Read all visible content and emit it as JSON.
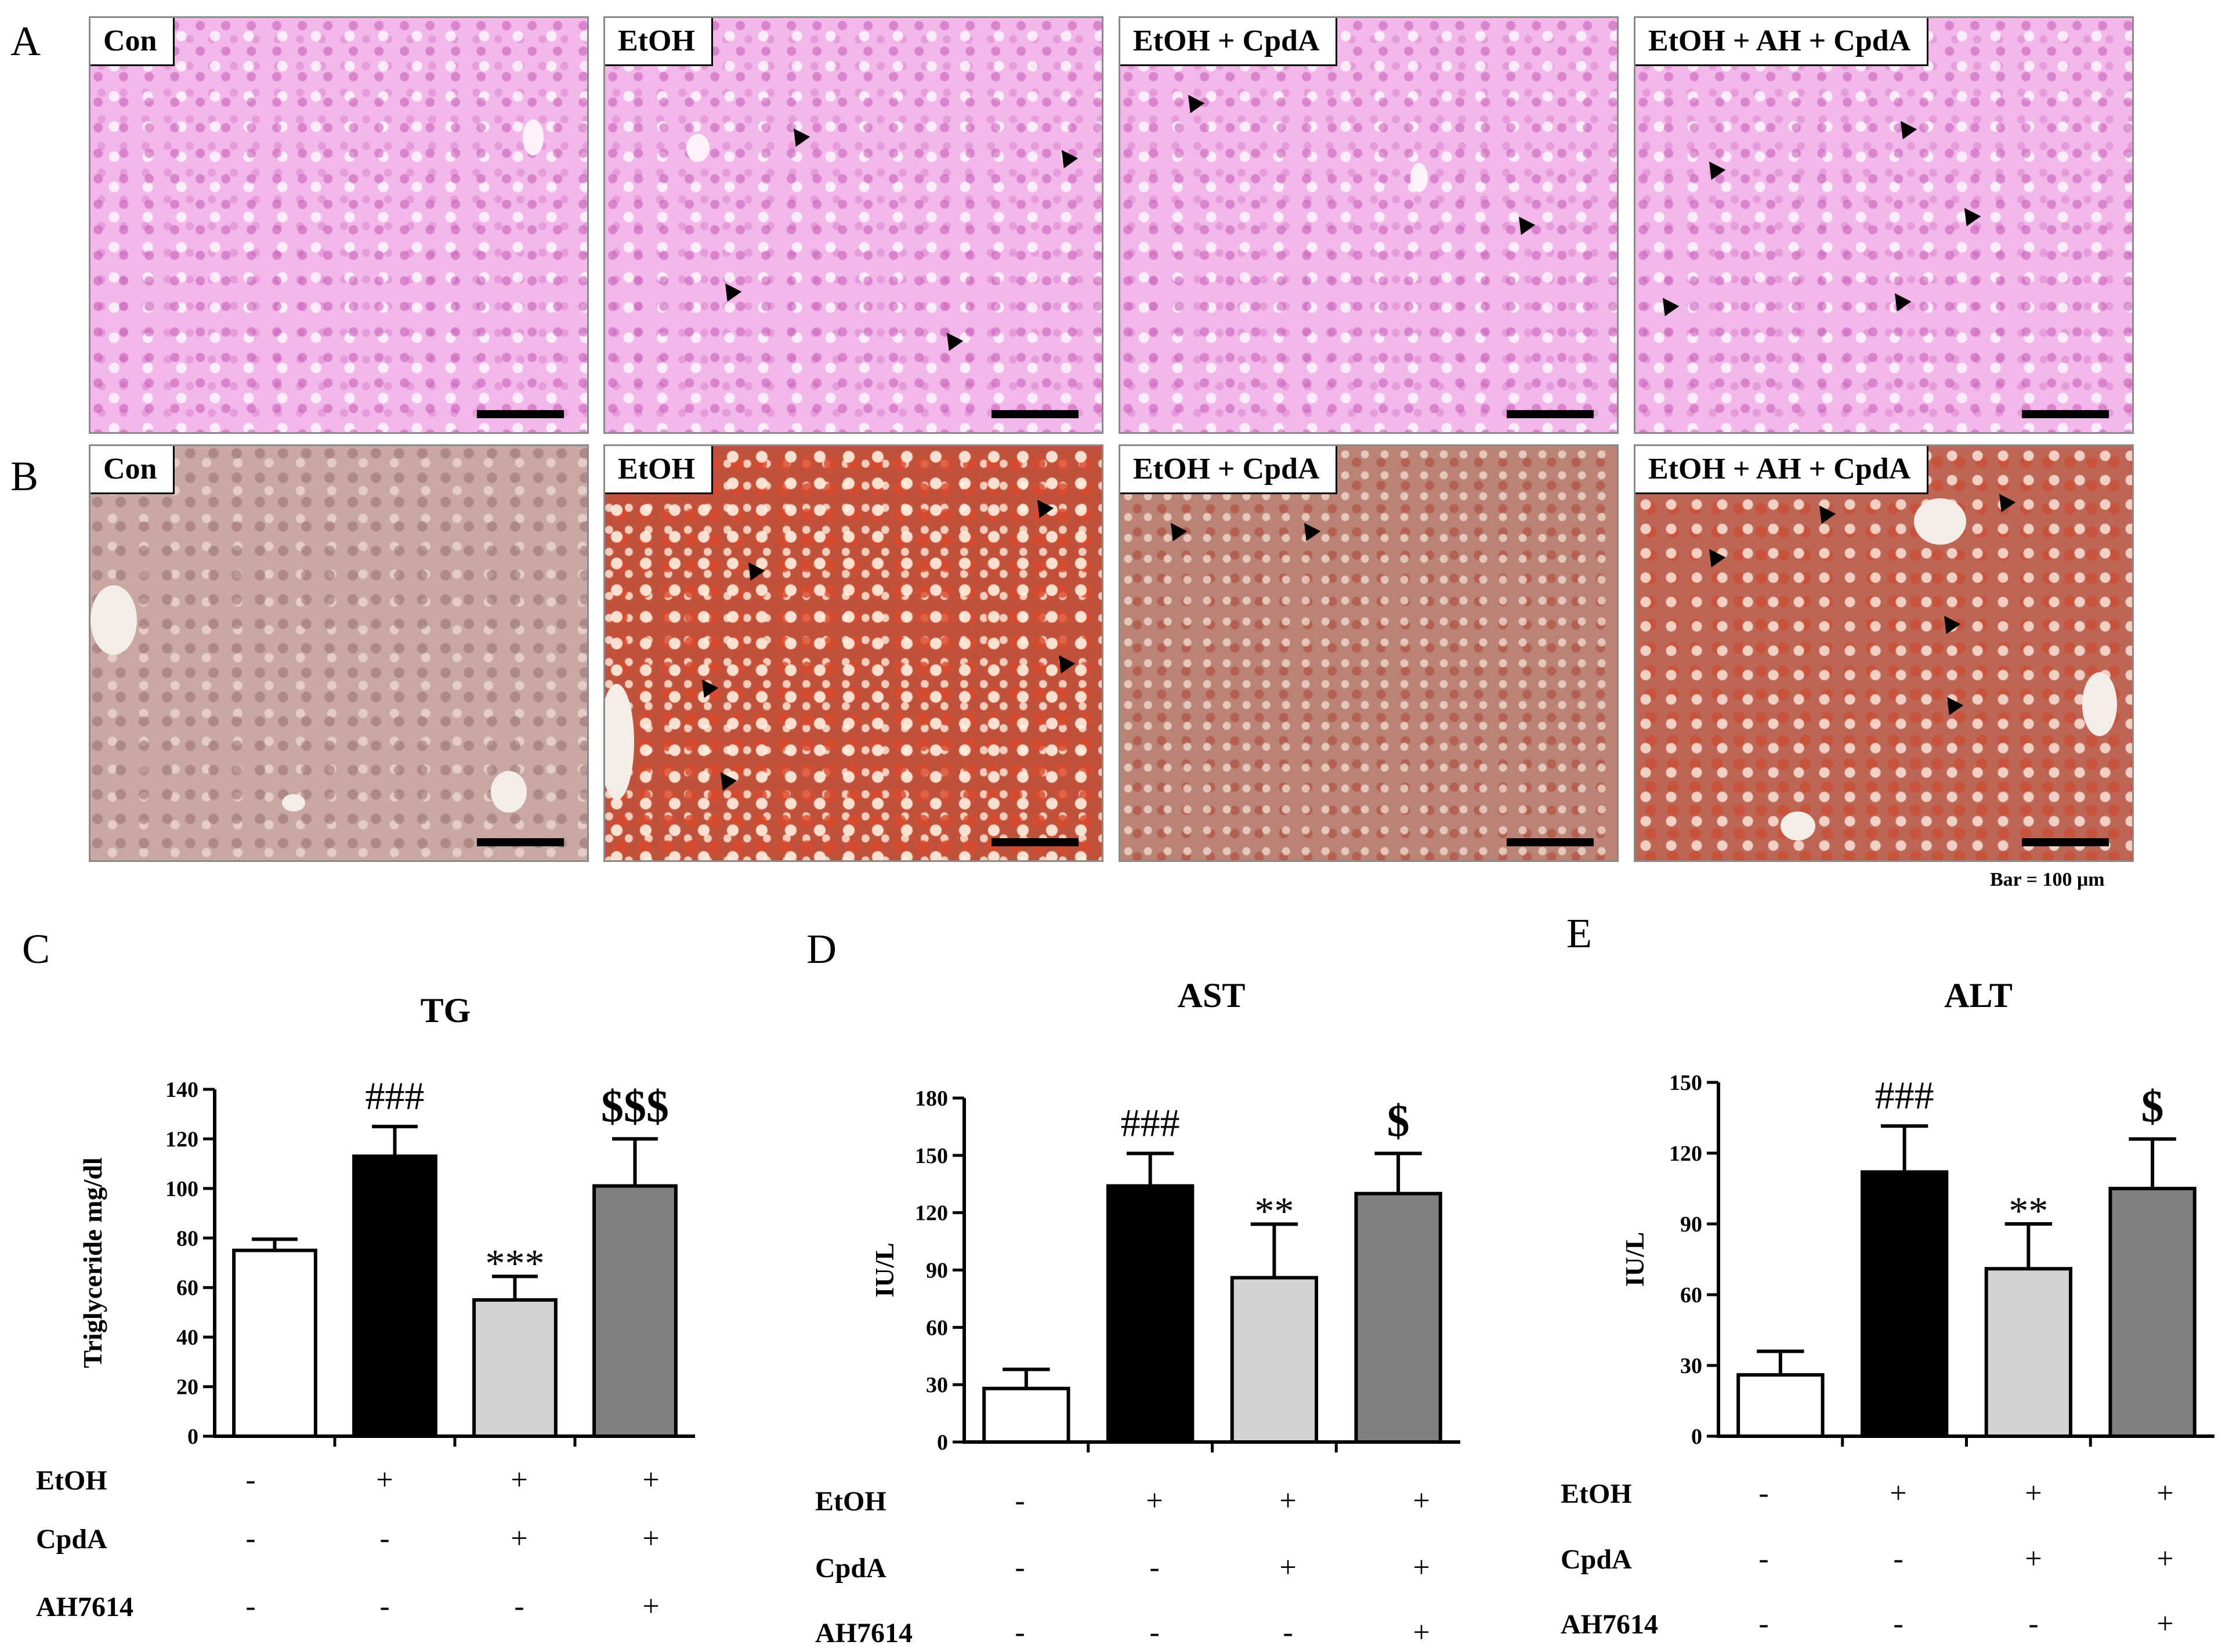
{
  "figure": {
    "panel_letters": [
      "A",
      "B",
      "C",
      "D",
      "E"
    ],
    "scale_note": "Bar = 100 μm",
    "micrograph_titles": [
      "Con",
      "EtOH",
      "EtOH + CpdA",
      "EtOH + AH + CpdA"
    ],
    "micrograph_colors": {
      "he_stain": "#f3b8ea",
      "oil_red_o_con": "#c9a8a4",
      "oil_red_o_etoh": "#c0523c"
    }
  },
  "chart_data": [
    {
      "type": "bar",
      "title": "TG",
      "ylabel": "Triglyceride mg/dl",
      "xlabel": "",
      "ylim": [
        0,
        140
      ],
      "yticks": [
        0,
        20,
        40,
        60,
        80,
        100,
        120,
        140
      ],
      "values": [
        75,
        113,
        55,
        101
      ],
      "errors": [
        4.5,
        12,
        9.5,
        19
      ],
      "colors": [
        "#ffffff",
        "#000000",
        "#d3d3d3",
        "#808080"
      ],
      "significance": [
        "",
        "###",
        "***",
        "$$$"
      ],
      "treatments": [
        {
          "label": "EtOH",
          "marks": [
            "-",
            "+",
            "+",
            "+"
          ]
        },
        {
          "label": "CpdA",
          "marks": [
            "-",
            "-",
            "+",
            "+"
          ]
        },
        {
          "label": "AH7614",
          "marks": [
            "-",
            "-",
            "-",
            "+"
          ]
        }
      ]
    },
    {
      "type": "bar",
      "title": "AST",
      "ylabel": "IU/L",
      "xlabel": "",
      "ylim": [
        0,
        180
      ],
      "yticks": [
        0,
        30,
        60,
        90,
        120,
        150,
        180
      ],
      "values": [
        28,
        134,
        86,
        130
      ],
      "errors": [
        10,
        17,
        28,
        21
      ],
      "colors": [
        "#ffffff",
        "#000000",
        "#d3d3d3",
        "#808080"
      ],
      "significance": [
        "",
        "###",
        "**",
        "$"
      ],
      "treatments": [
        {
          "label": "EtOH",
          "marks": [
            "-",
            "+",
            "+",
            "+"
          ]
        },
        {
          "label": "CpdA",
          "marks": [
            "-",
            "-",
            "+",
            "+"
          ]
        },
        {
          "label": "AH7614",
          "marks": [
            "-",
            "-",
            "-",
            "+"
          ]
        }
      ]
    },
    {
      "type": "bar",
      "title": "ALT",
      "ylabel": "IU/L",
      "xlabel": "",
      "ylim": [
        0,
        150
      ],
      "yticks": [
        0,
        30,
        60,
        90,
        120,
        150
      ],
      "values": [
        26,
        112,
        71,
        105
      ],
      "errors": [
        10,
        19.5,
        19,
        21
      ],
      "colors": [
        "#ffffff",
        "#000000",
        "#d3d3d3",
        "#808080"
      ],
      "significance": [
        "",
        "###",
        "**",
        "$"
      ],
      "treatments": [
        {
          "label": "EtOH",
          "marks": [
            "-",
            "+",
            "+",
            "+"
          ]
        },
        {
          "label": "CpdA",
          "marks": [
            "-",
            "-",
            "+",
            "+"
          ]
        },
        {
          "label": "AH7614",
          "marks": [
            "-",
            "-",
            "-",
            "+"
          ]
        }
      ]
    }
  ]
}
